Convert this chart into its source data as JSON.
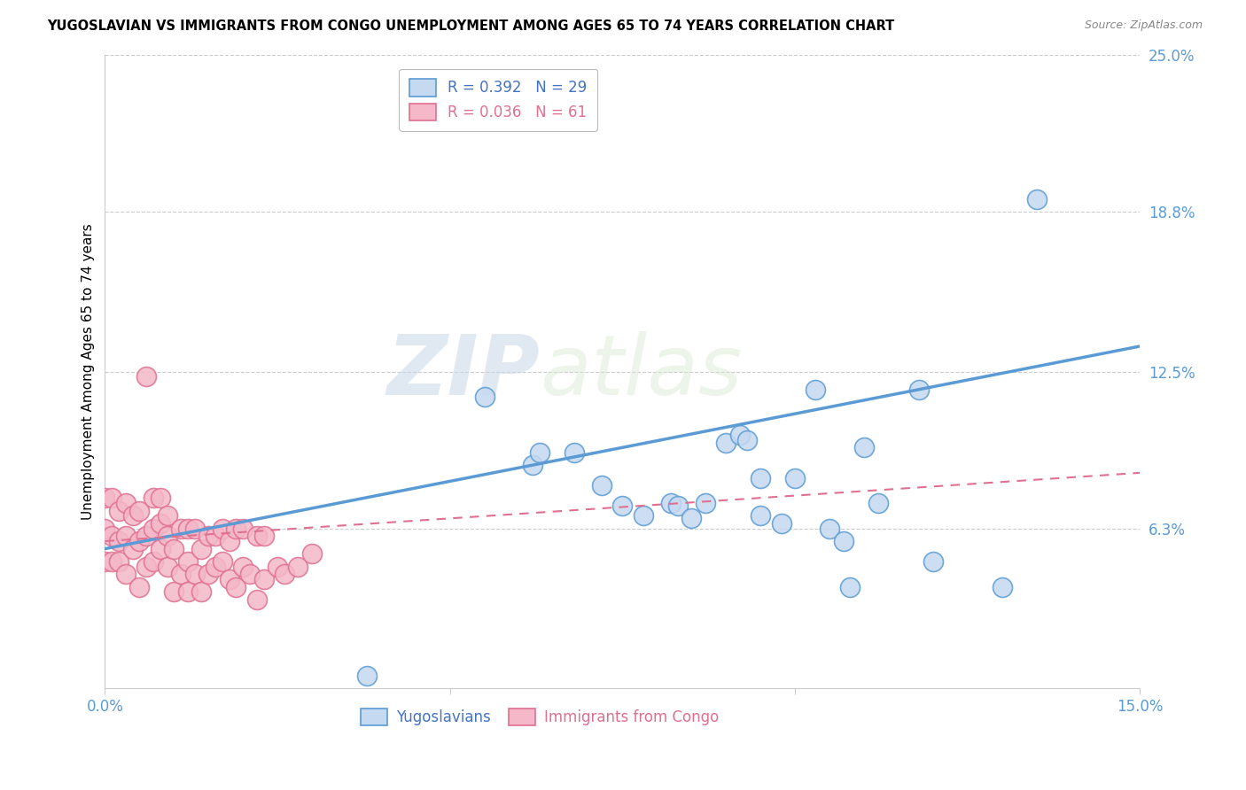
{
  "title": "YUGOSLAVIAN VS IMMIGRANTS FROM CONGO UNEMPLOYMENT AMONG AGES 65 TO 74 YEARS CORRELATION CHART",
  "source": "Source: ZipAtlas.com",
  "ylabel": "Unemployment Among Ages 65 to 74 years",
  "xlim": [
    0.0,
    0.15
  ],
  "ylim": [
    0.0,
    0.25
  ],
  "ytick_positions": [
    0.063,
    0.125,
    0.188,
    0.25
  ],
  "ytick_labels": [
    "6.3%",
    "12.5%",
    "18.8%",
    "25.0%"
  ],
  "legend_label_blue": "R = 0.392   N = 29",
  "legend_label_pink": "R = 0.036   N = 61",
  "blue_scatter_x": [
    0.038,
    0.055,
    0.062,
    0.063,
    0.068,
    0.072,
    0.075,
    0.078,
    0.082,
    0.083,
    0.085,
    0.087,
    0.09,
    0.092,
    0.093,
    0.095,
    0.095,
    0.098,
    0.1,
    0.103,
    0.105,
    0.107,
    0.108,
    0.11,
    0.112,
    0.118,
    0.12,
    0.13,
    0.135
  ],
  "blue_scatter_y": [
    0.005,
    0.115,
    0.088,
    0.093,
    0.093,
    0.08,
    0.072,
    0.068,
    0.073,
    0.072,
    0.067,
    0.073,
    0.097,
    0.1,
    0.098,
    0.083,
    0.068,
    0.065,
    0.083,
    0.118,
    0.063,
    0.058,
    0.04,
    0.095,
    0.073,
    0.118,
    0.05,
    0.04,
    0.193
  ],
  "pink_scatter_x": [
    0.0,
    0.0,
    0.0,
    0.001,
    0.001,
    0.001,
    0.002,
    0.002,
    0.002,
    0.003,
    0.003,
    0.003,
    0.004,
    0.004,
    0.005,
    0.005,
    0.005,
    0.006,
    0.006,
    0.006,
    0.007,
    0.007,
    0.007,
    0.008,
    0.008,
    0.008,
    0.009,
    0.009,
    0.009,
    0.01,
    0.01,
    0.011,
    0.011,
    0.012,
    0.012,
    0.012,
    0.013,
    0.013,
    0.014,
    0.014,
    0.015,
    0.015,
    0.016,
    0.016,
    0.017,
    0.017,
    0.018,
    0.018,
    0.019,
    0.019,
    0.02,
    0.02,
    0.021,
    0.022,
    0.022,
    0.023,
    0.023,
    0.025,
    0.026,
    0.028,
    0.03
  ],
  "pink_scatter_y": [
    0.05,
    0.063,
    0.075,
    0.05,
    0.06,
    0.075,
    0.05,
    0.058,
    0.07,
    0.045,
    0.06,
    0.073,
    0.055,
    0.068,
    0.04,
    0.058,
    0.07,
    0.048,
    0.06,
    0.123,
    0.05,
    0.063,
    0.075,
    0.055,
    0.065,
    0.075,
    0.048,
    0.06,
    0.068,
    0.038,
    0.055,
    0.045,
    0.063,
    0.038,
    0.05,
    0.063,
    0.045,
    0.063,
    0.038,
    0.055,
    0.045,
    0.06,
    0.048,
    0.06,
    0.05,
    0.063,
    0.043,
    0.058,
    0.04,
    0.063,
    0.048,
    0.063,
    0.045,
    0.035,
    0.06,
    0.043,
    0.06,
    0.048,
    0.045,
    0.048,
    0.053
  ],
  "blue_line_x": [
    0.0,
    0.15
  ],
  "blue_line_y": [
    0.055,
    0.135
  ],
  "pink_line_x": [
    0.0,
    0.15
  ],
  "pink_line_y": [
    0.058,
    0.085
  ],
  "blue_color": "#5b9bd5",
  "blue_face": "#c5d9f1",
  "pink_color": "#e07090",
  "pink_face": "#f4b8c8",
  "watermark_zip": "ZIP",
  "watermark_atlas": "atlas",
  "grid_color": "#cccccc"
}
